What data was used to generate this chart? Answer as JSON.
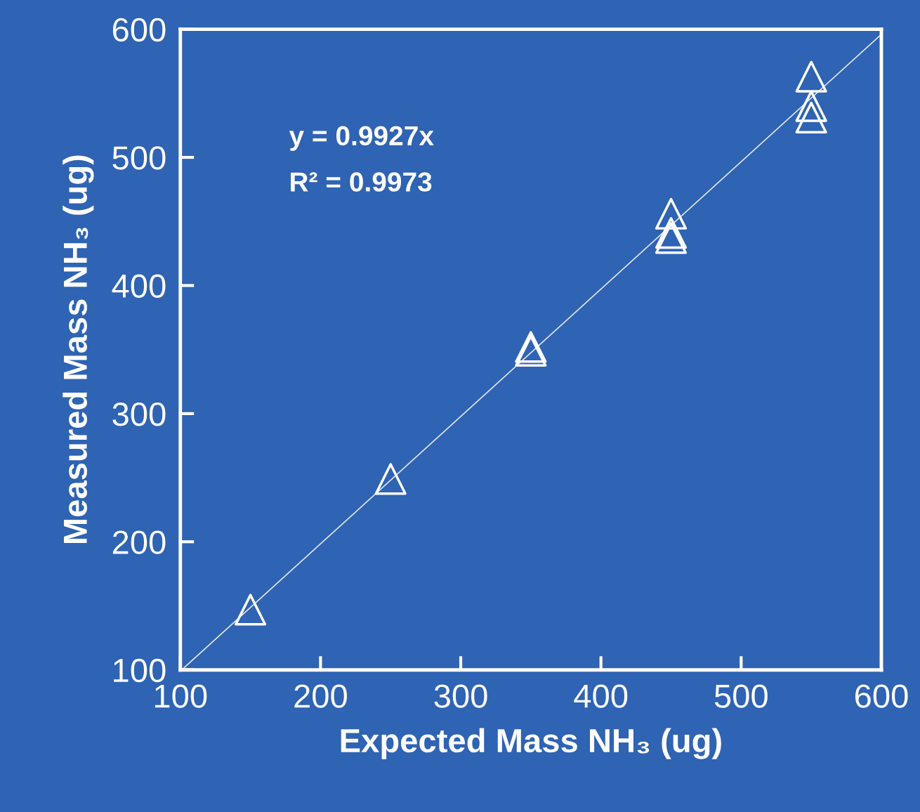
{
  "chart_data": {
    "type": "scatter",
    "xlabel": "Expected Mass NH₃ (ug)",
    "ylabel": "Measured Mass NH₃ (ug)",
    "xlim": [
      100,
      600
    ],
    "ylim": [
      100,
      600
    ],
    "xticks": [
      100,
      200,
      300,
      400,
      500,
      600
    ],
    "yticks": [
      100,
      200,
      300,
      400,
      500,
      600
    ],
    "grid": false,
    "marker": "triangle",
    "annotations": [
      "y = 0.9927x",
      "R² = 0.9973"
    ],
    "series": [
      {
        "color": "#ffffff",
        "x": [
          150,
          250,
          350,
          350,
          450,
          450,
          450,
          550,
          550,
          550
        ],
        "values": [
          147,
          249,
          352,
          349,
          456,
          441,
          437,
          563,
          540,
          531
        ]
      },
      {
        "type": "line",
        "color": "#dde6f5",
        "marker": "none",
        "line_style": "solid",
        "x": [
          101,
          600
        ],
        "values": [
          100,
          596
        ]
      }
    ]
  }
}
